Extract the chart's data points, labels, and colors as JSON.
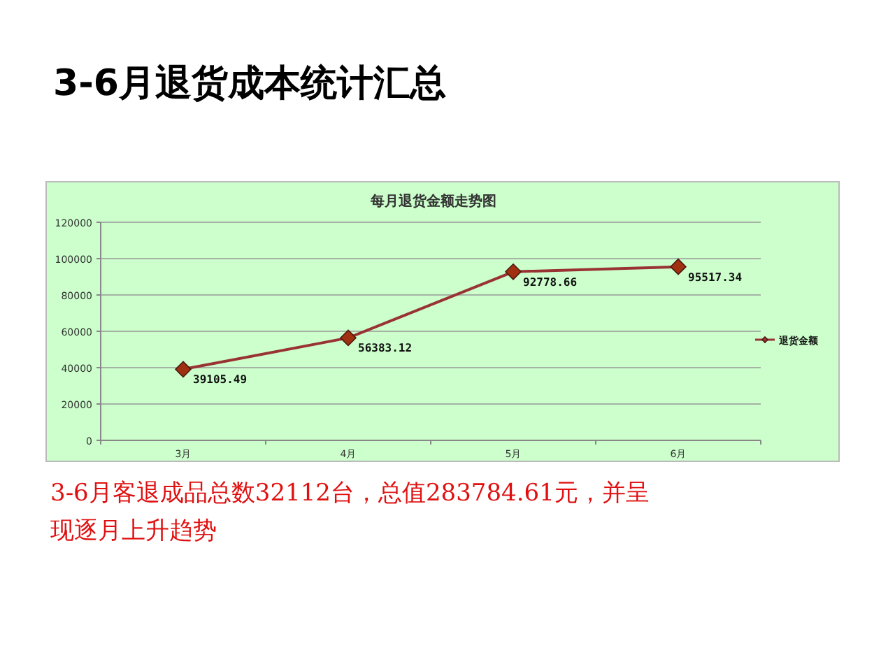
{
  "chart_data": {
    "type": "line",
    "title": "3-6月退货成本统计汇总",
    "subtitle": "每月退货金额走势图",
    "categories": [
      "3月",
      "4月",
      "5月",
      "6月"
    ],
    "series": [
      {
        "name": "退货金额",
        "color": "#993333",
        "values": [
          39105.49,
          56383.12,
          92778.66,
          95517.34
        ]
      }
    ],
    "ylim": [
      0,
      120000
    ],
    "yticks": [
      0,
      20000,
      40000,
      60000,
      80000,
      100000,
      120000
    ],
    "grid": "y",
    "legend": "right",
    "marker": "diamond",
    "line_style": "solid",
    "data_labels": true,
    "annotations": [
      "3-6月客退成品总数32112台，总值283784.61元，并呈现逐月上升趋势"
    ]
  }
}
